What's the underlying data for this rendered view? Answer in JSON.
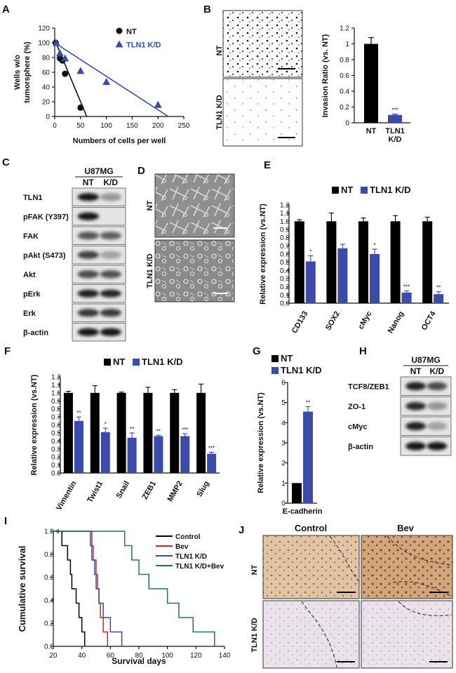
{
  "panels": {
    "A": {
      "label": "A",
      "chart_data": {
        "type": "scatter",
        "ylabel_lines": [
          "Wells w/o",
          "tumorsphere (%)"
        ],
        "xlabel": "Numbers of cells per well",
        "xlim": [
          0,
          250
        ],
        "ylim": [
          0,
          120
        ],
        "xticks": [
          0,
          50,
          100,
          150,
          200,
          250
        ],
        "yticks": [
          0,
          20,
          40,
          60,
          80,
          100,
          120
        ],
        "series": [
          {
            "name": "NT",
            "color": "#111111",
            "marker": "circle",
            "x": [
              2,
              10,
              15,
              20,
              50
            ],
            "y": [
              100,
              79,
              76,
              58,
              12
            ],
            "fit": [
              [
                0,
                104
              ],
              [
                62,
                0
              ]
            ]
          },
          {
            "name": "TLN1 K/D",
            "color": "#3a4bab",
            "marker": "triangle",
            "x": [
              3,
              10,
              20,
              50,
              100,
              200
            ],
            "y": [
              100,
              86,
              79,
              62,
              47,
              16
            ],
            "fit": [
              [
                0,
                100
              ],
              [
                220,
                0
              ]
            ]
          }
        ]
      }
    },
    "B": {
      "label": "B",
      "row_labels": [
        "NT",
        "TLN1 K/D"
      ],
      "chart_data": {
        "type": "bar",
        "ylabel": "Invasion Ratio (vs. NT)",
        "categories": [
          "NT",
          "TLN1\nK/D"
        ],
        "values": [
          1.0,
          0.1
        ],
        "errors": [
          0.08,
          0.01
        ],
        "colors": [
          "#000000",
          "#3a4bab"
        ],
        "ylim": [
          0,
          1.2
        ],
        "yticks": [
          0,
          0.2,
          0.4,
          0.6,
          0.8,
          1,
          1.2
        ],
        "significance": [
          "",
          "***"
        ]
      }
    },
    "C": {
      "label": "C",
      "cell_line": "U87MG",
      "columns": [
        "NT",
        "K/D"
      ],
      "rows": [
        {
          "name": "TLN1",
          "intensity": [
            0.95,
            0.35
          ]
        },
        {
          "name": "pFAK (Y397)",
          "intensity": [
            0.95,
            0.05
          ]
        },
        {
          "name": "FAK",
          "intensity": [
            0.65,
            0.62
          ]
        },
        {
          "name": "pAkt (S473)",
          "intensity": [
            0.75,
            0.3
          ]
        },
        {
          "name": "Akt",
          "intensity": [
            0.7,
            0.68
          ]
        },
        {
          "name": "pErk",
          "intensity": [
            0.9,
            0.88
          ]
        },
        {
          "name": "Erk",
          "intensity": [
            0.8,
            0.78
          ]
        },
        {
          "name": "β-actin",
          "intensity": [
            0.95,
            0.95
          ]
        }
      ]
    },
    "D": {
      "label": "D",
      "row_labels": [
        "NT",
        "TLN1 K/D"
      ]
    },
    "E": {
      "label": "E",
      "chart_data": {
        "type": "bar",
        "ylabel": "Relative expression (vs.NT)",
        "categories": [
          "CD133",
          "SOX2",
          "cMyc",
          "Nanog",
          "OCT4"
        ],
        "series": [
          {
            "name": "NT",
            "color": "#000000",
            "values": [
              1.0,
              1.0,
              1.0,
              1.0,
              1.0
            ],
            "errors": [
              0.02,
              0.1,
              0.04,
              0.07,
              0.05
            ]
          },
          {
            "name": "TLN1 K/D",
            "color": "#3a4bab",
            "values": [
              0.51,
              0.67,
              0.6,
              0.13,
              0.11
            ],
            "errors": [
              0.07,
              0.05,
              0.06,
              0.02,
              0.03
            ]
          }
        ],
        "significance": [
          "*",
          "",
          "*",
          "***",
          "**"
        ],
        "ylim": [
          0,
          1.2
        ],
        "yticks": [
          0,
          0.1,
          0.2,
          0.3,
          0.4,
          0.5,
          0.6,
          0.7,
          0.8,
          0.9,
          1.0,
          1.1,
          1.2
        ]
      }
    },
    "F": {
      "label": "F",
      "chart_data": {
        "type": "bar",
        "ylabel": "Relative expression (vs.NT)",
        "categories": [
          "Vimentin",
          "Twist1",
          "Snail",
          "ZEB1",
          "MMP2",
          "Slug"
        ],
        "series": [
          {
            "name": "NT",
            "color": "#000000",
            "values": [
              1.0,
              1.0,
              1.0,
              1.0,
              1.0,
              1.0
            ],
            "errors": [
              0.02,
              0.09,
              0.01,
              0.07,
              0.04,
              0.11
            ]
          },
          {
            "name": "TLN1 K/D",
            "color": "#3a4bab",
            "values": [
              0.65,
              0.51,
              0.44,
              0.46,
              0.46,
              0.24
            ],
            "errors": [
              0.05,
              0.05,
              0.06,
              0.01,
              0.03,
              0.02
            ]
          }
        ],
        "significance": [
          "**",
          "*",
          "**",
          "**",
          "***",
          "***"
        ],
        "ylim": [
          0,
          1.2
        ],
        "yticks": [
          0,
          0.1,
          0.2,
          0.3,
          0.4,
          0.5,
          0.6,
          0.7,
          0.8,
          0.9,
          1.0,
          1.1,
          1.2
        ]
      }
    },
    "G": {
      "label": "G",
      "chart_data": {
        "type": "bar",
        "ylabel": "Relative expression (vs.NT)",
        "categories": [
          "E-cadherin"
        ],
        "series": [
          {
            "name": "NT",
            "color": "#000000",
            "values": [
              1.0
            ],
            "errors": [
              0
            ]
          },
          {
            "name": "TLN1 K/D",
            "color": "#3a4bab",
            "values": [
              4.55
            ],
            "errors": [
              0.25
            ]
          }
        ],
        "significance": [
          "**"
        ],
        "ylim": [
          0,
          6
        ],
        "yticks": [
          0,
          1,
          2,
          3,
          4,
          5,
          6
        ]
      }
    },
    "H": {
      "label": "H",
      "cell_line": "U87MG",
      "columns": [
        "NT",
        "K/D"
      ],
      "rows": [
        {
          "name": "TCF8/ZEB1",
          "intensity": [
            0.9,
            0.7
          ]
        },
        {
          "name": "ZO-1",
          "intensity": [
            0.85,
            0.35
          ]
        },
        {
          "name": "cMyc",
          "intensity": [
            0.9,
            0.3
          ]
        },
        {
          "name": "β-actin",
          "intensity": [
            0.95,
            0.95
          ]
        }
      ]
    },
    "I": {
      "label": "I",
      "chart_data": {
        "type": "line",
        "ylabel": "Cumulative survival",
        "xlabel": "Survival days",
        "xlim": [
          20,
          140
        ],
        "ylim": [
          0,
          1.0
        ],
        "xticks": [
          20,
          40,
          60,
          80,
          100,
          120,
          140
        ],
        "yticks": [
          0,
          0.2,
          0.4,
          0.6,
          0.8,
          1.0
        ],
        "series": [
          {
            "name": "Control",
            "color": "#000000",
            "events": [
              26,
              30,
              32,
              33,
              36,
              38,
              40,
              42
            ]
          },
          {
            "name": "Bev",
            "color": "#e02020",
            "events": [
              47,
              48,
              50,
              51,
              52,
              53,
              55,
              58
            ]
          },
          {
            "name": "TLN1 K/D",
            "color": "#3a4bab",
            "events": [
              46,
              47,
              49,
              50,
              52,
              55,
              60,
              68
            ]
          },
          {
            "name": "TLN1 K/D+Bev",
            "color": "#1e7a4a",
            "events": [
              70,
              75,
              80,
              87,
              100,
              108,
              118,
              133
            ]
          }
        ]
      }
    },
    "J": {
      "label": "J",
      "col_labels": [
        "Control",
        "Bev"
      ],
      "row_labels": [
        "NT",
        "TLN1 K/D"
      ]
    }
  }
}
